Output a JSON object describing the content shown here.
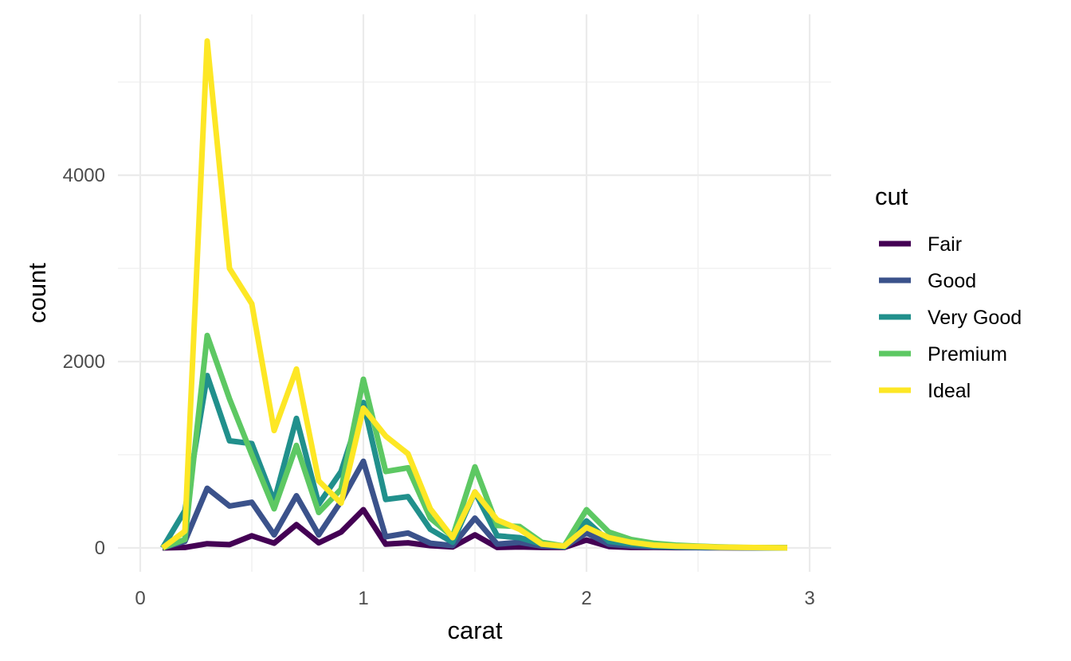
{
  "chart_data": {
    "type": "line",
    "xlabel": "carat",
    "ylabel": "count",
    "xlim": [
      0,
      3
    ],
    "ylim": [
      0,
      5500
    ],
    "x_ticks": [
      0,
      1,
      2,
      3
    ],
    "x_tick_labels": [
      "0",
      "1",
      "2",
      "3"
    ],
    "y_ticks": [
      0,
      2000,
      4000
    ],
    "y_tick_labels": [
      "0",
      "2000",
      "4000"
    ],
    "grid": true,
    "legend": {
      "title": "cut",
      "position": "right"
    },
    "x": [
      0.1,
      0.2,
      0.3,
      0.4,
      0.5,
      0.6,
      0.7,
      0.8,
      0.9,
      1.0,
      1.1,
      1.2,
      1.3,
      1.4,
      1.5,
      1.6,
      1.7,
      1.8,
      1.9,
      2.0,
      2.1,
      2.2,
      2.3,
      2.4,
      2.5,
      2.6,
      2.7,
      2.8,
      2.9
    ],
    "series": [
      {
        "name": "Fair",
        "color": "#440154",
        "values": [
          0,
          5,
          45,
          35,
          130,
          50,
          250,
          55,
          170,
          410,
          40,
          55,
          25,
          10,
          140,
          5,
          10,
          5,
          5,
          85,
          15,
          5,
          5,
          3,
          3,
          2,
          1,
          1,
          1
        ]
      },
      {
        "name": "Good",
        "color": "#3b528b",
        "values": [
          0,
          70,
          640,
          450,
          490,
          140,
          560,
          140,
          500,
          930,
          120,
          160,
          50,
          25,
          320,
          40,
          60,
          20,
          10,
          160,
          40,
          20,
          10,
          8,
          5,
          3,
          2,
          1,
          1
        ]
      },
      {
        "name": "Very Good",
        "color": "#21908c",
        "values": [
          0,
          400,
          1850,
          1150,
          1120,
          500,
          1390,
          470,
          820,
          1560,
          520,
          550,
          200,
          60,
          600,
          130,
          110,
          40,
          10,
          290,
          70,
          40,
          20,
          10,
          8,
          5,
          3,
          2,
          1
        ]
      },
      {
        "name": "Premium",
        "color": "#5dc863",
        "values": [
          0,
          90,
          2280,
          1600,
          1000,
          420,
          1100,
          380,
          630,
          1810,
          820,
          860,
          320,
          120,
          870,
          240,
          230,
          60,
          20,
          410,
          170,
          90,
          50,
          30,
          20,
          10,
          5,
          3,
          2
        ]
      },
      {
        "name": "Ideal",
        "color": "#fde725",
        "values": [
          0,
          180,
          5440,
          3000,
          2620,
          1260,
          1920,
          720,
          480,
          1500,
          1200,
          1010,
          420,
          110,
          600,
          300,
          200,
          40,
          20,
          220,
          110,
          60,
          30,
          20,
          15,
          8,
          5,
          3,
          1
        ]
      }
    ]
  }
}
